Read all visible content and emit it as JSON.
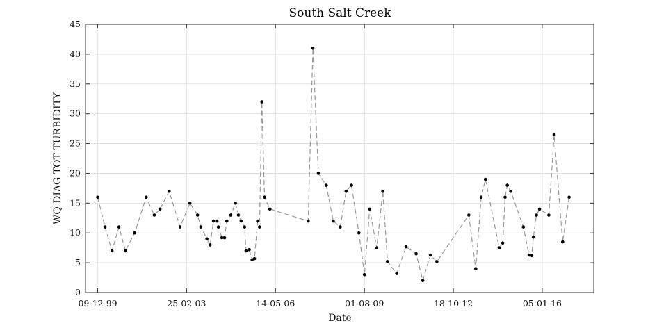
{
  "chart_data": {
    "type": "line",
    "title": "South Salt Creek",
    "xlabel": "Date",
    "ylabel": "WQ DIAG TOT TURBIDITY",
    "ylim": [
      0,
      45
    ],
    "yticks": [
      0,
      5,
      10,
      15,
      20,
      25,
      30,
      35,
      40,
      45
    ],
    "xlim": [
      "1999-07-01",
      "2017-11-15"
    ],
    "xticks": [
      {
        "date": "1999-12-09",
        "label": "09-12-99"
      },
      {
        "date": "2003-02-25",
        "label": "25-02-03"
      },
      {
        "date": "2006-05-14",
        "label": "14-05-06"
      },
      {
        "date": "2009-08-01",
        "label": "01-08-09"
      },
      {
        "date": "2012-10-18",
        "label": "18-10-12"
      },
      {
        "date": "2016-01-05",
        "label": "05-01-16"
      }
    ],
    "grid": true,
    "line_color": "#999999",
    "marker_color": "#000000",
    "series": [
      {
        "points": [
          [
            "1999-12-09",
            16
          ],
          [
            "2000-03-15",
            11
          ],
          [
            "2000-06-15",
            7
          ],
          [
            "2000-09-15",
            11
          ],
          [
            "2000-12-10",
            7
          ],
          [
            "2001-04-10",
            10
          ],
          [
            "2001-09-10",
            16
          ],
          [
            "2001-12-25",
            13
          ],
          [
            "2002-03-10",
            14
          ],
          [
            "2002-07-10",
            17
          ],
          [
            "2002-12-01",
            11
          ],
          [
            "2003-04-10",
            15
          ],
          [
            "2003-07-20",
            13
          ],
          [
            "2003-09-01",
            11
          ],
          [
            "2003-11-20",
            9
          ],
          [
            "2004-01-01",
            8
          ],
          [
            "2004-02-15",
            12
          ],
          [
            "2004-04-01",
            12
          ],
          [
            "2004-04-20",
            11
          ],
          [
            "2004-06-05",
            9.2
          ],
          [
            "2004-07-10",
            9.2
          ],
          [
            "2004-08-10",
            12
          ],
          [
            "2004-10-01",
            13
          ],
          [
            "2004-12-01",
            15
          ],
          [
            "2005-01-10",
            13
          ],
          [
            "2005-02-15",
            12
          ],
          [
            "2005-04-01",
            11
          ],
          [
            "2005-04-20",
            7
          ],
          [
            "2005-06-01",
            7.2
          ],
          [
            "2005-07-10",
            5.5
          ],
          [
            "2005-08-10",
            5.7
          ],
          [
            "2005-09-20",
            12
          ],
          [
            "2005-10-15",
            11
          ],
          [
            "2005-11-15",
            32
          ],
          [
            "2005-12-20",
            16
          ],
          [
            "2006-03-01",
            14
          ],
          [
            "2007-07-20",
            12
          ],
          [
            "2007-09-20",
            41
          ],
          [
            "2007-12-01",
            20
          ],
          [
            "2008-03-15",
            18
          ],
          [
            "2008-06-15",
            12
          ],
          [
            "2008-09-15",
            11
          ],
          [
            "2008-12-01",
            17
          ],
          [
            "2009-02-10",
            18
          ],
          [
            "2009-05-20",
            10
          ],
          [
            "2009-08-01",
            3
          ],
          [
            "2009-10-10",
            14
          ],
          [
            "2010-01-10",
            7.5
          ],
          [
            "2010-04-01",
            17
          ],
          [
            "2010-06-01",
            5.2
          ],
          [
            "2010-10-01",
            3.2
          ],
          [
            "2011-02-01",
            7.7
          ],
          [
            "2011-06-15",
            6.5
          ],
          [
            "2011-09-10",
            2
          ],
          [
            "2011-12-20",
            6.3
          ],
          [
            "2012-03-15",
            5.2
          ],
          [
            "2013-05-10",
            13
          ],
          [
            "2013-08-10",
            4
          ],
          [
            "2013-10-20",
            16
          ],
          [
            "2013-12-15",
            19
          ],
          [
            "2014-06-15",
            7.5
          ],
          [
            "2014-08-01",
            8.3
          ],
          [
            "2014-09-01",
            16
          ],
          [
            "2014-10-01",
            18
          ],
          [
            "2014-11-15",
            17
          ],
          [
            "2015-05-01",
            11
          ],
          [
            "2015-07-15",
            6.3
          ],
          [
            "2015-08-20",
            6.2
          ],
          [
            "2015-09-10",
            9.3
          ],
          [
            "2015-10-20",
            13
          ],
          [
            "2015-12-01",
            14
          ],
          [
            "2016-04-01",
            13
          ],
          [
            "2016-06-10",
            26.5
          ],
          [
            "2016-10-01",
            8.5
          ],
          [
            "2016-12-25",
            16
          ]
        ]
      }
    ]
  }
}
